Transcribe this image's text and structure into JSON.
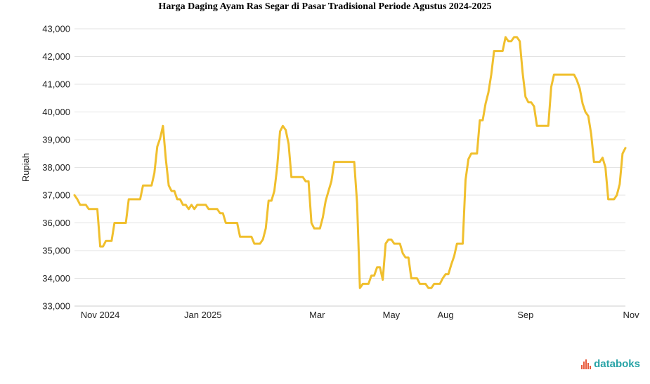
{
  "brand": {
    "name": "databoks",
    "icon": "databoks-logo-icon",
    "icon_color": "#e8593a",
    "text_color": "#27a3a6"
  },
  "chart_data": {
    "type": "line",
    "title": "Harga Daging Ayam Ras Segar di Pasar Tradisional Periode Agustus 2024-2025",
    "xlabel": "",
    "ylabel": "Rupiah",
    "ylim": [
      33000,
      43000
    ],
    "yticks": [
      33000,
      34000,
      35000,
      36000,
      37000,
      38000,
      39000,
      40000,
      41000,
      42000,
      43000
    ],
    "ytick_labels": [
      "33,000",
      "34,000",
      "35,000",
      "36,000",
      "37,000",
      "38,000",
      "39,000",
      "40,000",
      "41,000",
      "42,000",
      "43,000"
    ],
    "x_tick_labels": [
      {
        "label": "Nov 2024",
        "index": 9
      },
      {
        "label": "Jan 2025",
        "index": 45
      },
      {
        "label": "Mar",
        "index": 85
      },
      {
        "label": "May",
        "index": 111
      },
      {
        "label": "Aug",
        "index": 130
      },
      {
        "label": "Sep",
        "index": 158
      },
      {
        "label": "Nov",
        "index": 195
      }
    ],
    "grid": true,
    "line_color": "#f0bf2d",
    "series": [
      {
        "values": [
          37000,
          36850,
          36650,
          36650,
          36650,
          36500,
          36500,
          36500,
          36500,
          35150,
          35150,
          35350,
          35350,
          35350,
          36000,
          36000,
          36000,
          36000,
          36000,
          36850,
          36850,
          36850,
          36850,
          36850,
          37350,
          37350,
          37350,
          37350,
          37800,
          38750,
          39050,
          39500,
          38300,
          37350,
          37150,
          37150,
          36850,
          36850,
          36650,
          36650,
          36500,
          36650,
          36500,
          36650,
          36650,
          36650,
          36650,
          36500,
          36500,
          36500,
          36500,
          36350,
          36350,
          36000,
          36000,
          36000,
          36000,
          36000,
          35500,
          35500,
          35500,
          35500,
          35500,
          35250,
          35250,
          35250,
          35400,
          35800,
          36800,
          36800,
          37150,
          38000,
          39300,
          39500,
          39350,
          38850,
          37650,
          37650,
          37650,
          37650,
          37650,
          37500,
          37500,
          36000,
          35800,
          35800,
          35800,
          36200,
          36800,
          37150,
          37500,
          38200,
          38200,
          38200,
          38200,
          38200,
          38200,
          38200,
          38200,
          36700,
          33650,
          33800,
          33800,
          33800,
          34100,
          34100,
          34400,
          34400,
          33950,
          35250,
          35400,
          35400,
          35250,
          35250,
          35250,
          34900,
          34750,
          34750,
          34000,
          34000,
          34000,
          33800,
          33800,
          33800,
          33650,
          33650,
          33800,
          33800,
          33800,
          34000,
          34150,
          34150,
          34500,
          34800,
          35250,
          35250,
          35250,
          37550,
          38300,
          38500,
          38500,
          38500,
          39700,
          39700,
          40300,
          40700,
          41350,
          42200,
          42200,
          42200,
          42200,
          42700,
          42550,
          42550,
          42700,
          42700,
          42550,
          41400,
          40550,
          40350,
          40350,
          40200,
          39500,
          39500,
          39500,
          39500,
          39500,
          40900,
          41350,
          41350,
          41350,
          41350,
          41350,
          41350,
          41350,
          41350,
          41150,
          40850,
          40300,
          40000,
          39850,
          39200,
          38200,
          38200,
          38200,
          38350,
          38000,
          36850,
          36850,
          36850,
          37000,
          37400,
          38500,
          38700
        ]
      }
    ]
  }
}
